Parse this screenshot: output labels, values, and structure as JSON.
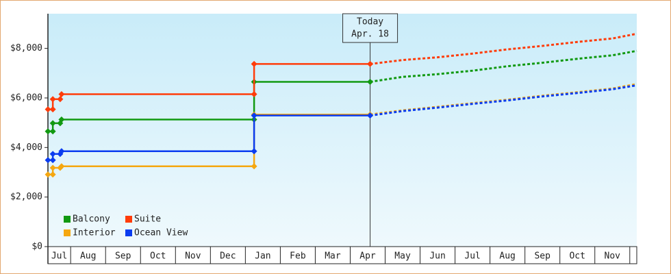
{
  "chart_data": {
    "type": "step-line",
    "x_categories": [
      "Jul",
      "Aug",
      "Sep",
      "Oct",
      "Nov",
      "Dec",
      "Jan",
      "Feb",
      "Mar",
      "Apr",
      "May",
      "Jun",
      "Jul",
      "Aug",
      "Sep",
      "Oct",
      "Nov",
      null
    ],
    "xlim": [
      0.35,
      17.2
    ],
    "ylim": [
      0,
      9400
    ],
    "yticks": [
      {
        "value": 0,
        "label": "$0"
      },
      {
        "value": 2000,
        "label": "$2,000"
      },
      {
        "value": 4000,
        "label": "$4,000"
      },
      {
        "value": 6000,
        "label": "$6,000"
      },
      {
        "value": 8000,
        "label": "$8,000"
      }
    ],
    "today_x": 9.57,
    "today_label": "Today",
    "today_date": "Apr. 18",
    "x": [
      0.35,
      0.49,
      0.49,
      0.7,
      0.74,
      6.25,
      6.25,
      9.57
    ],
    "forecast_x": [
      9.57,
      10.5,
      11.5,
      12.5,
      13.5,
      14.5,
      15.5,
      16.5,
      17.2
    ],
    "legend": "lower left",
    "series": [
      {
        "name": "Balcony",
        "color": "#119911",
        "values": [
          4650,
          4650,
          4980,
          4980,
          5130,
          5130,
          6650,
          6650
        ],
        "forecast_values": [
          6650,
          6850,
          6960,
          7100,
          7280,
          7420,
          7580,
          7720,
          7900
        ]
      },
      {
        "name": "Suite",
        "color": "#ff3c0a",
        "values": [
          5540,
          5540,
          5950,
          5950,
          6150,
          6150,
          7370,
          7370
        ],
        "forecast_values": [
          7370,
          7530,
          7640,
          7790,
          7960,
          8100,
          8260,
          8400,
          8590
        ]
      },
      {
        "name": "Interior",
        "color": "#f5a710",
        "values": [
          2910,
          2910,
          3180,
          3180,
          3240,
          3240,
          5330,
          5330
        ],
        "forecast_values": [
          5330,
          5500,
          5640,
          5790,
          5930,
          6090,
          6230,
          6380,
          6560
        ]
      },
      {
        "name": "Ocean View",
        "color": "#0a3cf0",
        "values": [
          3490,
          3490,
          3740,
          3740,
          3850,
          3850,
          5290,
          5290
        ],
        "forecast_values": [
          5290,
          5470,
          5610,
          5760,
          5900,
          6060,
          6200,
          6350,
          6510
        ]
      }
    ]
  }
}
